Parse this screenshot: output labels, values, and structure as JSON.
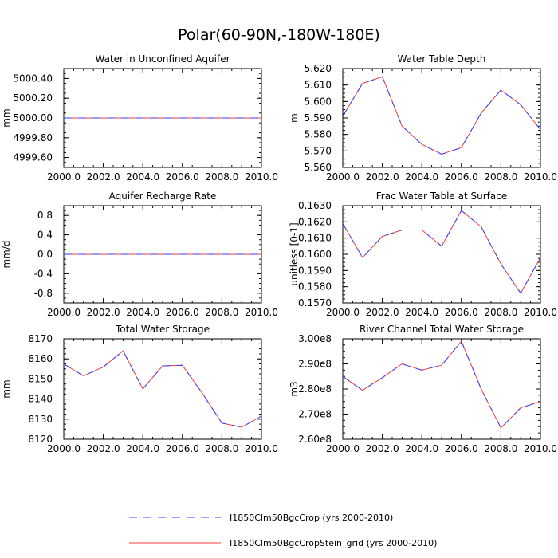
{
  "title": "Polar(60-90N,-180W-180E)",
  "legend": [
    {
      "label": "I1850Clm50BgcCrop (yrs 2000-2010)",
      "color": "#3b3bff",
      "dash": "10,8"
    },
    {
      "label": "I1850Clm50BgcCropStein_grid (yrs 2000-2010)",
      "color": "#ff3b3b",
      "dash": ""
    }
  ],
  "chart_data": [
    {
      "type": "line",
      "title": "Water in Unconfined Aquifer",
      "ylabel": "mm",
      "xlim": [
        2000,
        2010
      ],
      "ylim": [
        4999.5,
        5000.5
      ],
      "xticks": [
        "2000.0",
        "2002.0",
        "2004.0",
        "2006.0",
        "2008.0",
        "2010.0"
      ],
      "yticks": [
        4999.6,
        4999.8,
        5000.0,
        5000.2,
        5000.4
      ],
      "ytick_labels": [
        "4999.60",
        "4999.80",
        "5000.00",
        "5000.20",
        "5000.40"
      ],
      "x": [
        2000,
        2001,
        2002,
        2003,
        2004,
        2005,
        2006,
        2007,
        2008,
        2009,
        2010
      ],
      "series": [
        {
          "values": [
            5000,
            5000,
            5000,
            5000,
            5000,
            5000,
            5000,
            5000,
            5000,
            5000,
            5000
          ]
        },
        {
          "values": [
            5000,
            5000,
            5000,
            5000,
            5000,
            5000,
            5000,
            5000,
            5000,
            5000,
            5000
          ]
        }
      ]
    },
    {
      "type": "line",
      "title": "Water Table Depth",
      "ylabel": "m",
      "xlim": [
        2000,
        2010
      ],
      "ylim": [
        5.56,
        5.62
      ],
      "xticks": [
        "2000.0",
        "2002.0",
        "2004.0",
        "2006.0",
        "2008.0",
        "2010.0"
      ],
      "yticks": [
        5.56,
        5.57,
        5.58,
        5.59,
        5.6,
        5.61,
        5.62
      ],
      "ytick_labels": [
        "5.560",
        "5.570",
        "5.580",
        "5.590",
        "5.600",
        "5.610",
        "5.620"
      ],
      "x": [
        2000,
        2001,
        2002,
        2003,
        2004,
        2005,
        2006,
        2007,
        2008,
        2009,
        2010
      ],
      "series": [
        {
          "values": [
            5.591,
            5.611,
            5.615,
            5.585,
            5.574,
            5.568,
            5.572,
            5.593,
            5.607,
            5.598,
            5.583
          ]
        },
        {
          "values": [
            5.591,
            5.611,
            5.615,
            5.585,
            5.574,
            5.568,
            5.572,
            5.593,
            5.607,
            5.598,
            5.583
          ]
        }
      ]
    },
    {
      "type": "line",
      "title": "Aquifer Recharge Rate",
      "ylabel": "mm/d",
      "xlim": [
        2000,
        2010
      ],
      "ylim": [
        -1.0,
        1.0
      ],
      "xticks": [
        "2000.0",
        "2002.0",
        "2004.0",
        "2006.0",
        "2008.0",
        "2010.0"
      ],
      "yticks": [
        -0.8,
        -0.4,
        0.0,
        0.4,
        0.8
      ],
      "ytick_labels": [
        "-0.8",
        "-0.4",
        "0.0",
        "0.4",
        "0.8"
      ],
      "x": [
        2000,
        2001,
        2002,
        2003,
        2004,
        2005,
        2006,
        2007,
        2008,
        2009,
        2010
      ],
      "series": [
        {
          "values": [
            0,
            0,
            0,
            0,
            0,
            0,
            0,
            0,
            0,
            0,
            0
          ]
        },
        {
          "values": [
            0,
            0,
            0,
            0,
            0,
            0,
            0,
            0,
            0,
            0,
            0
          ]
        }
      ]
    },
    {
      "type": "line",
      "title": "Frac Water Table at Surface",
      "ylabel": "unitless [0-1]",
      "xlim": [
        2000,
        2010
      ],
      "ylim": [
        0.157,
        0.163
      ],
      "xticks": [
        "2000.0",
        "2002.0",
        "2004.0",
        "2006.0",
        "2008.0",
        "2010.0"
      ],
      "yticks": [
        0.157,
        0.158,
        0.159,
        0.16,
        0.161,
        0.162,
        0.163
      ],
      "ytick_labels": [
        "0.1570",
        "0.1580",
        "0.1590",
        "0.1600",
        "0.1610",
        "0.1620",
        "0.1630"
      ],
      "x": [
        2000,
        2001,
        2002,
        2003,
        2004,
        2005,
        2006,
        2007,
        2008,
        2009,
        2010
      ],
      "series": [
        {
          "values": [
            0.1619,
            0.1598,
            0.1611,
            0.1615,
            0.1615,
            0.1605,
            0.1627,
            0.1617,
            0.1594,
            0.1576,
            0.1598
          ]
        },
        {
          "values": [
            0.1619,
            0.1598,
            0.1611,
            0.1615,
            0.1615,
            0.1605,
            0.1627,
            0.1617,
            0.1594,
            0.1576,
            0.1598
          ]
        }
      ]
    },
    {
      "type": "line",
      "title": "Total Water Storage",
      "ylabel": "mm",
      "xlim": [
        2000,
        2010
      ],
      "ylim": [
        8120,
        8170
      ],
      "xticks": [
        "2000.0",
        "2002.0",
        "2004.0",
        "2006.0",
        "2008.0",
        "2010.0"
      ],
      "yticks": [
        8120,
        8130,
        8140,
        8150,
        8160,
        8170
      ],
      "ytick_labels": [
        "8120",
        "8130",
        "8140",
        "8150",
        "8160",
        "8170"
      ],
      "x": [
        2000,
        2001,
        2002,
        2003,
        2004,
        2005,
        2006,
        2007,
        2008,
        2009,
        2010
      ],
      "series": [
        {
          "values": [
            8157.5,
            8151.5,
            8156.0,
            8164.0,
            8145.0,
            8156.5,
            8156.8,
            8143.0,
            8128.0,
            8126.0,
            8131.5
          ]
        },
        {
          "values": [
            8157.5,
            8151.5,
            8156.0,
            8164.0,
            8145.0,
            8156.5,
            8156.8,
            8143.0,
            8128.0,
            8126.0,
            8131.5
          ]
        }
      ]
    },
    {
      "type": "line",
      "title": "River Channel Total Water Storage",
      "ylabel": "m3",
      "xlim": [
        2000,
        2010
      ],
      "ylim": [
        260000000,
        300000000
      ],
      "xticks": [
        "2000.0",
        "2002.0",
        "2004.0",
        "2006.0",
        "2008.0",
        "2010.0"
      ],
      "yticks": [
        260000000,
        270000000,
        280000000,
        290000000,
        300000000
      ],
      "ytick_labels": [
        "2.60e8",
        "2.70e8",
        "2.80e8",
        "2.90e8",
        "3.00e8"
      ],
      "x": [
        2000,
        2001,
        2002,
        2003,
        2004,
        2005,
        2006,
        2007,
        2008,
        2009,
        2010
      ],
      "series": [
        {
          "values": [
            285000000,
            279500000,
            284500000,
            290000000,
            287500000,
            289500000,
            299000000,
            280000000,
            264500000,
            272500000,
            275000000
          ]
        },
        {
          "values": [
            285000000,
            279500000,
            284500000,
            290000000,
            287500000,
            289500000,
            299000000,
            280000000,
            264500000,
            272500000,
            275000000
          ]
        }
      ]
    }
  ]
}
